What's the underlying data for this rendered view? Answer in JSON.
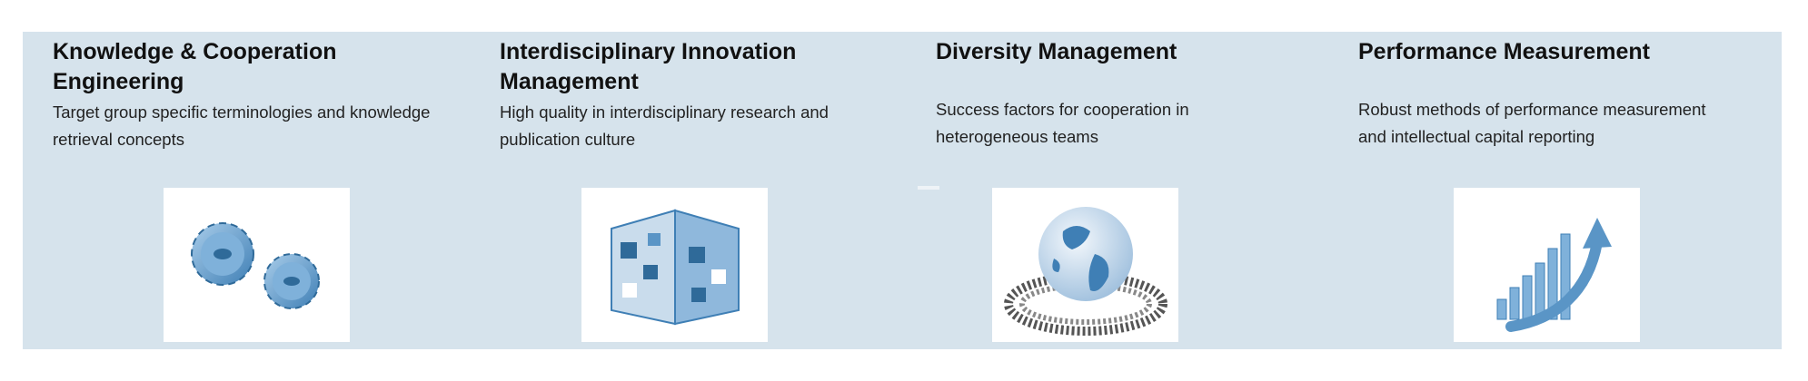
{
  "columns": [
    {
      "title": "Knowledge & Cooperation Engineering",
      "description": "Target group specific terminologies and knowledge retrieval concepts",
      "image": "gears-icon"
    },
    {
      "title": "Interdisciplinary Innovation Management",
      "description": "High quality in interdisciplinary research and publication culture",
      "image": "puzzle-cube-icon"
    },
    {
      "title": "Diversity Management",
      "description": "Success factors for cooperation in heterogeneous teams",
      "image": "globe-people-ring-icon"
    },
    {
      "title": "Performance Measurement",
      "description": "Robust methods of performance measurement and intellectual capital reporting",
      "image": "growth-chart-arrow-icon"
    }
  ],
  "colors": {
    "panel": "#d6e3ec",
    "accent": "#4a86b8"
  }
}
